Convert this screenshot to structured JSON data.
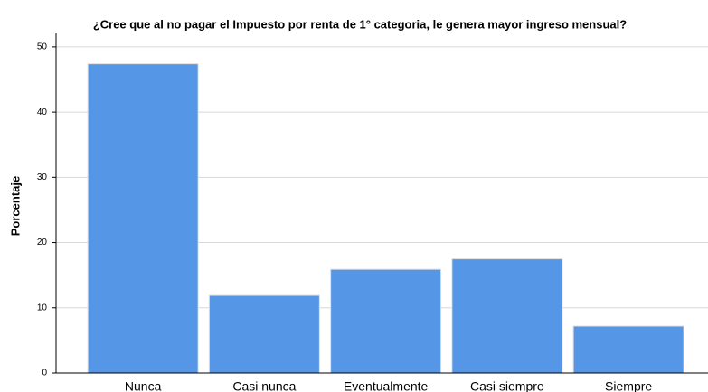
{
  "chart_data": {
    "type": "bar",
    "title": "¿Cree que al no pagar el Impuesto por renta de 1° categoria, le genera mayor ingreso mensual?",
    "y_label": "Porcentaje",
    "categories": [
      "Nunca",
      "Casi nunca",
      "Eventualmente",
      "Casi siempre",
      "Siempre"
    ],
    "values": [
      47.4,
      11.9,
      15.9,
      17.5,
      7.2
    ],
    "color": "#5596e6",
    "ylim": [
      0,
      52.2
    ],
    "yticks": [
      0,
      10,
      20,
      30,
      40,
      50
    ],
    "grid": true
  }
}
